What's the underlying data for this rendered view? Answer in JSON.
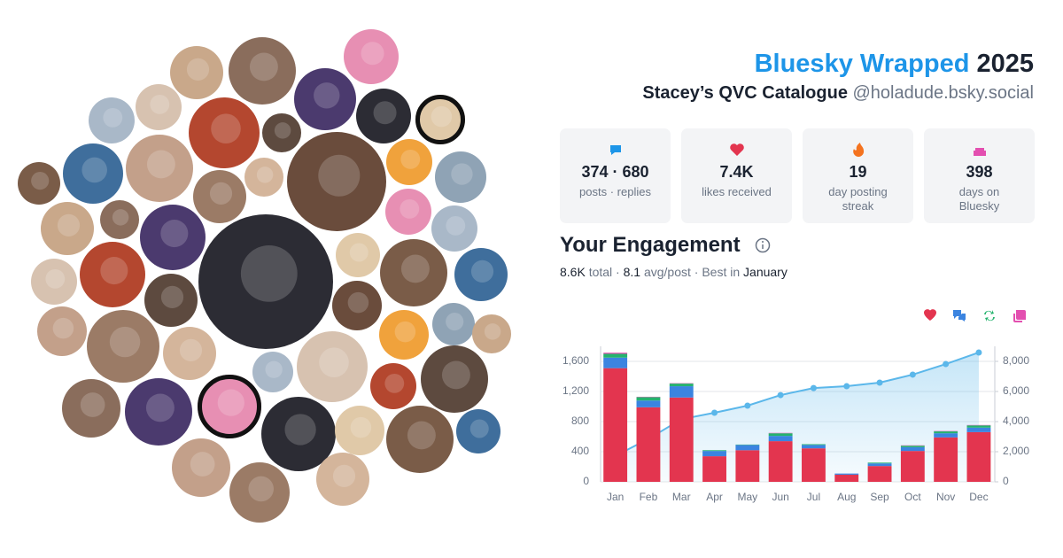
{
  "header": {
    "title": "Bluesky Wrapped",
    "year": "2025",
    "name": "Stacey’s QVC Catalogue",
    "handle": "@holadude.bsky.social"
  },
  "stats": [
    {
      "value": "374 · 680",
      "label": "posts · replies"
    },
    {
      "value": "7.4K",
      "label": "likes received"
    },
    {
      "value": "19",
      "label": "day posting streak"
    },
    {
      "value": "398",
      "label": "days on Bluesky"
    }
  ],
  "engagement": {
    "title": "Your Engagement",
    "summary": [
      {
        "text": "8.6K",
        "strong": true
      },
      {
        "text": "total ·"
      },
      {
        "text": "8.1",
        "strong": true
      },
      {
        "text": "avg/post · Best in"
      },
      {
        "text": "January",
        "strong": true
      }
    ]
  },
  "chart_data": {
    "type": "bar",
    "stacked": true,
    "categories": [
      "Jan",
      "Feb",
      "Mar",
      "Apr",
      "May",
      "Jun",
      "Jul",
      "Aug",
      "Sep",
      "Oct",
      "Nov",
      "Dec"
    ],
    "series": [
      {
        "color": "#e3354f",
        "values": [
          1510,
          990,
          1120,
          340,
          420,
          540,
          445,
          95,
          210,
          410,
          590,
          660
        ]
      },
      {
        "color": "#3b84e0",
        "values": [
          140,
          90,
          150,
          70,
          70,
          70,
          45,
          15,
          35,
          50,
          55,
          60
        ]
      },
      {
        "color": "#25b36e",
        "values": [
          50,
          45,
          35,
          10,
          5,
          35,
          10,
          0,
          10,
          20,
          25,
          30
        ]
      },
      {
        "color": "#e34fb0",
        "values": [
          15,
          5,
          5,
          0,
          0,
          5,
          0,
          0,
          0,
          5,
          5,
          5
        ]
      },
      {
        "type": "line",
        "axis": "y2",
        "color": "#5bb7ea",
        "values": [
          1720,
          2850,
          4160,
          4590,
          5060,
          5760,
          6230,
          6350,
          6590,
          7120,
          7820,
          8590
        ]
      }
    ],
    "ylim": [
      0,
      1800
    ],
    "yticks": [
      0,
      400,
      800,
      {
        "value": 1200,
        "label": "1,200"
      },
      {
        "value": 1600,
        "label": "1,600"
      }
    ],
    "y2lim": [
      0,
      9000
    ],
    "y2ticks": [
      0,
      {
        "value": 2000,
        "label": "2,000"
      },
      {
        "value": 4000,
        "label": "4,000"
      },
      {
        "value": 6000,
        "label": "6,000"
      },
      {
        "value": 8000,
        "label": "8,000"
      }
    ],
    "grid": true
  }
}
